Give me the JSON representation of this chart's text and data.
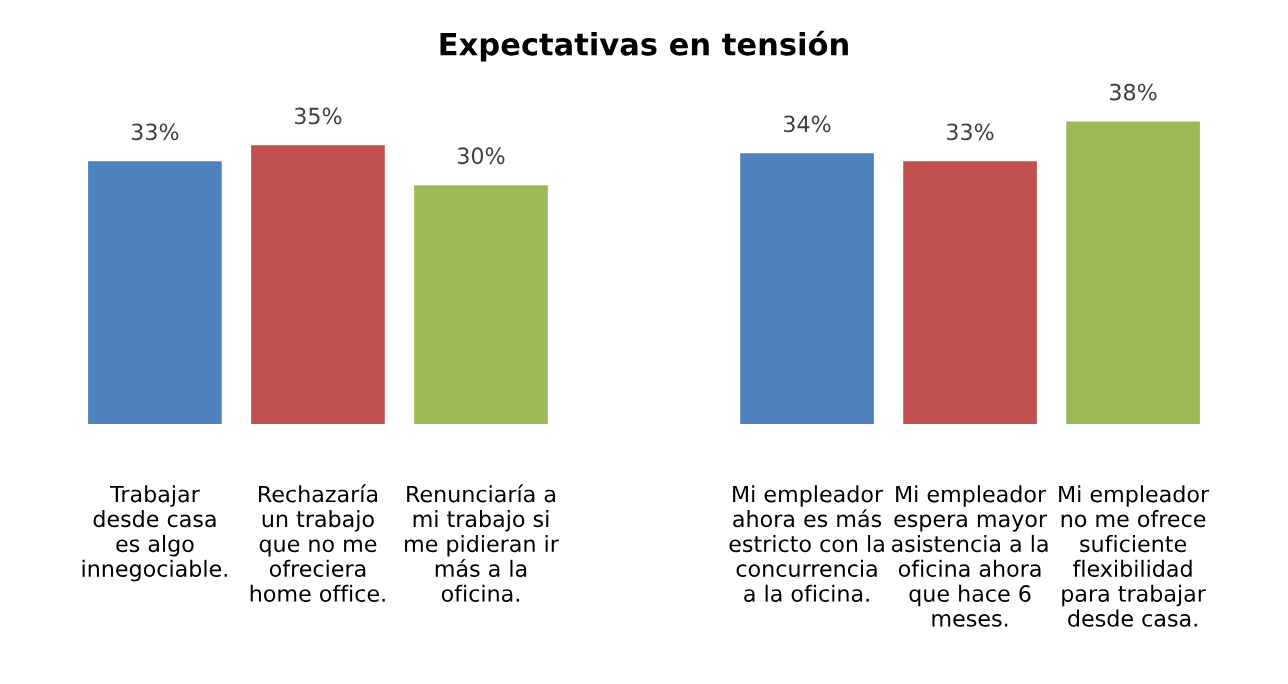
{
  "chart_data": {
    "type": "bar",
    "title": "Expectativas en tensión",
    "categories": [
      "Trabajar\ndesde casa\nes algo\ninnegociable.",
      "Rechazaría\nun trabajo\nque no me\nofreciera\nhome office.",
      "Renunciaría a\nmi trabajo si\nme pidieran ir\nmás a la\noficina.",
      null,
      "Mi empleador\nahora es más\nestricto con la\nconcurrencia\na la oficina.",
      "Mi empleador\nespera mayor\nasistencia a la\noficina ahora\nque hace 6\nmeses.",
      "Mi empleador\nno me ofrece\nsuficiente\nflexibilidad\npara trabajar\ndesde casa."
    ],
    "values": [
      33,
      35,
      30,
      null,
      34,
      33,
      38
    ],
    "colors": [
      "#4f81bd",
      "#c0504d",
      "#9bbb59",
      null,
      "#4f81bd",
      "#c0504d",
      "#9bbb59"
    ],
    "value_labels": [
      "33%",
      "35%",
      "30%",
      null,
      "34%",
      "33%",
      "38%"
    ],
    "grid": false,
    "legend": false
  }
}
